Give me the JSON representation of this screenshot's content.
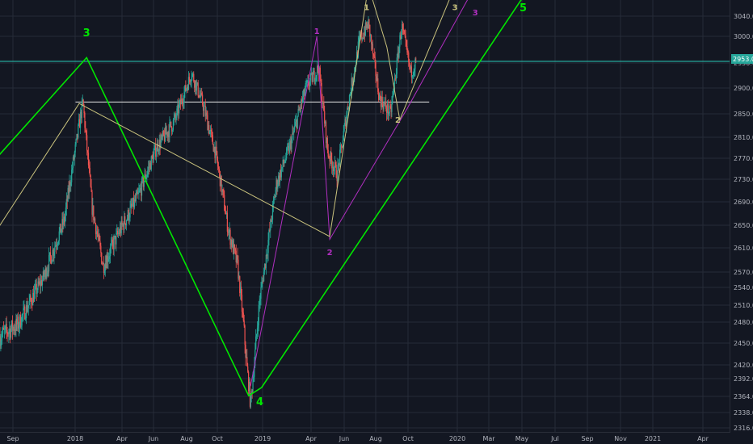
{
  "chart_data": {
    "type": "candlestick",
    "title": "",
    "xlabel": "",
    "ylabel": "",
    "y_ticks": [
      2316.0,
      2338.0,
      2364.0,
      2392.0,
      2420.0,
      2450.0,
      2480.0,
      2510.0,
      2540.0,
      2570.0,
      2610.0,
      2650.0,
      2690.0,
      2730.0,
      2770.0,
      2810.0,
      2850.0,
      2900.0,
      2950.0,
      3000.0,
      3040.0
    ],
    "x_ticks": [
      "Sep",
      "2018",
      "Apr",
      "Jun",
      "Aug",
      "Oct",
      "2019",
      "Apr",
      "Jun",
      "Aug",
      "Oct",
      "2020",
      "Mar",
      "May",
      "Jul",
      "Sep",
      "Nov",
      "2021",
      "Apr"
    ],
    "current_price": "2953.0",
    "horizontal_levels": [
      2953,
      2872.9
    ],
    "price_path": [
      [
        2017.62,
        2460
      ],
      [
        2017.72,
        2478
      ],
      [
        2017.85,
        2555
      ],
      [
        2017.97,
        2660
      ],
      [
        2018.03,
        2790
      ],
      [
        2018.07,
        2872.9
      ],
      [
        2018.12,
        2680
      ],
      [
        2018.18,
        2580
      ],
      [
        2018.27,
        2640
      ],
      [
        2018.37,
        2700
      ],
      [
        2018.47,
        2790
      ],
      [
        2018.57,
        2840
      ],
      [
        2018.66,
        2930
      ],
      [
        2018.72,
        2870
      ],
      [
        2018.79,
        2780
      ],
      [
        2018.86,
        2640
      ],
      [
        2018.91,
        2580
      ],
      [
        2018.98,
        2351
      ],
      [
        2019.03,
        2520
      ],
      [
        2019.12,
        2720
      ],
      [
        2019.2,
        2800
      ],
      [
        2019.28,
        2900
      ],
      [
        2019.35,
        2940
      ],
      [
        2019.4,
        2780
      ],
      [
        2019.45,
        2740
      ],
      [
        2019.52,
        2890
      ],
      [
        2019.57,
        2990
      ],
      [
        2019.62,
        3025
      ],
      [
        2019.68,
        2880
      ],
      [
        2019.74,
        2850
      ],
      [
        2019.8,
        3020
      ],
      [
        2019.85,
        2930
      ],
      [
        2019.88,
        2953
      ]
    ],
    "wave_labels": [
      {
        "text": "3",
        "x": 2018.09,
        "y": 3000,
        "color": "#00e600",
        "group": "green"
      },
      {
        "text": "4",
        "x": 2019.03,
        "y": 2350,
        "color": "#00e600",
        "group": "green"
      },
      {
        "text": "5",
        "x": 2020.46,
        "y": 3050,
        "color": "#00e600",
        "group": "green"
      },
      {
        "text": "1",
        "x": 2019.34,
        "y": 3005,
        "color": "#b02fc0",
        "group": "purple"
      },
      {
        "text": "2",
        "x": 2019.41,
        "y": 2598,
        "color": "#b02fc0",
        "group": "purple"
      },
      {
        "text": "3",
        "x": 2020.2,
        "y": 3042,
        "color": "#b02fc0",
        "group": "purple"
      },
      {
        "text": "1",
        "x": 2019.61,
        "y": 3052,
        "color": "#c9c27d",
        "group": "yellow"
      },
      {
        "text": "2",
        "x": 2019.78,
        "y": 2835,
        "color": "#c9c27d",
        "group": "yellow"
      },
      {
        "text": "3",
        "x": 2020.09,
        "y": 3052,
        "color": "#c9c27d",
        "group": "yellow"
      }
    ],
    "wave_lines": [
      {
        "color": "#00e600",
        "points": [
          [
            2017.6,
            2770
          ],
          [
            2018.09,
            2960
          ],
          [
            2018.97,
            2365
          ],
          [
            2019.04,
            2378
          ],
          [
            2020.5,
            3100
          ]
        ]
      },
      {
        "color": "#b02fc0",
        "points": [
          [
            2018.98,
            2380
          ],
          [
            2019.34,
            3000
          ],
          [
            2019.41,
            2625
          ],
          [
            2019.83,
            2860
          ],
          [
            2020.2,
            3100
          ]
        ]
      },
      {
        "color": "#c9c27d",
        "points": [
          [
            2017.6,
            2640
          ],
          [
            2018.05,
            2870
          ],
          [
            2019.41,
            2630
          ],
          [
            2019.62,
            3100
          ],
          [
            2019.72,
            2980
          ],
          [
            2019.79,
            2840
          ],
          [
            2020.09,
            3100
          ]
        ]
      }
    ]
  }
}
